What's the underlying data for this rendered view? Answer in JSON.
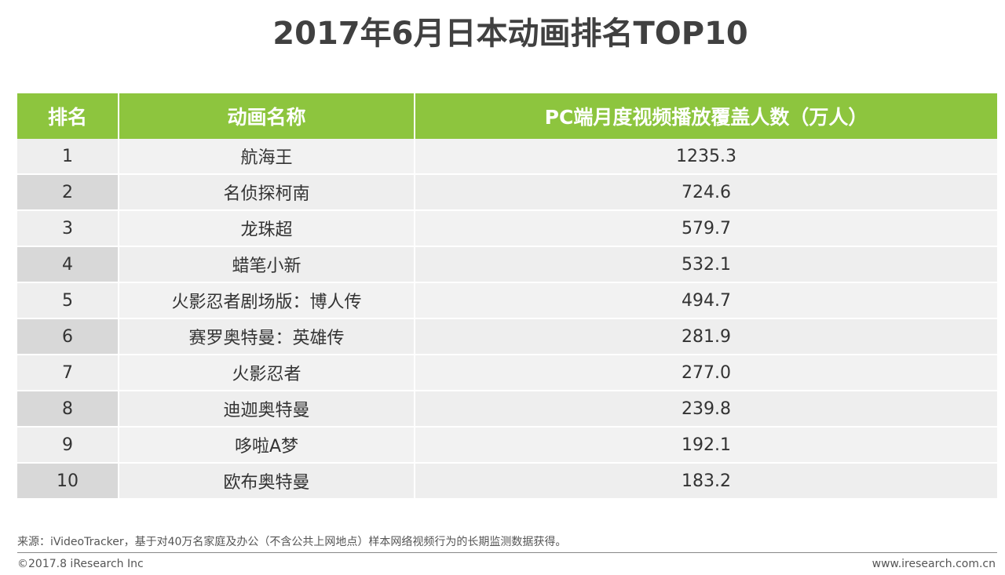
{
  "title": "2017年6月日本动画排名TOP10",
  "chart_data": {
    "type": "table",
    "title": "2017年6月日本动画排名TOP10",
    "columns": [
      "排名",
      "动画名称",
      "PC端月度视频播放覆盖人数（万人）"
    ],
    "rows": [
      {
        "rank": "1",
        "name": "航海王",
        "value": "1235.3"
      },
      {
        "rank": "2",
        "name": "名侦探柯南",
        "value": "724.6"
      },
      {
        "rank": "3",
        "name": "龙珠超",
        "value": "579.7"
      },
      {
        "rank": "4",
        "name": "蜡笔小新",
        "value": "532.1"
      },
      {
        "rank": "5",
        "name": "火影忍者剧场版：博人传",
        "value": "494.7"
      },
      {
        "rank": "6",
        "name": "赛罗奥特曼：英雄传",
        "value": "281.9"
      },
      {
        "rank": "7",
        "name": "火影忍者",
        "value": "277.0"
      },
      {
        "rank": "8",
        "name": "迪迦奥特曼",
        "value": "239.8"
      },
      {
        "rank": "9",
        "name": "哆啦A梦",
        "value": "192.1"
      },
      {
        "rank": "10",
        "name": "欧布奥特曼",
        "value": "183.2"
      }
    ]
  },
  "footer": {
    "source": "来源：iVideoTracker，基于对40万名家庭及办公（不含公共上网地点）样本网络视频行为的长期监测数据获得。",
    "copyright": "©2017.8 iResearch Inc",
    "website": "www.iresearch.com.cn"
  },
  "colors": {
    "header_green": "#8dc53e",
    "row_light": "#f2f2f2",
    "row_dark": "#d8d8d8"
  }
}
